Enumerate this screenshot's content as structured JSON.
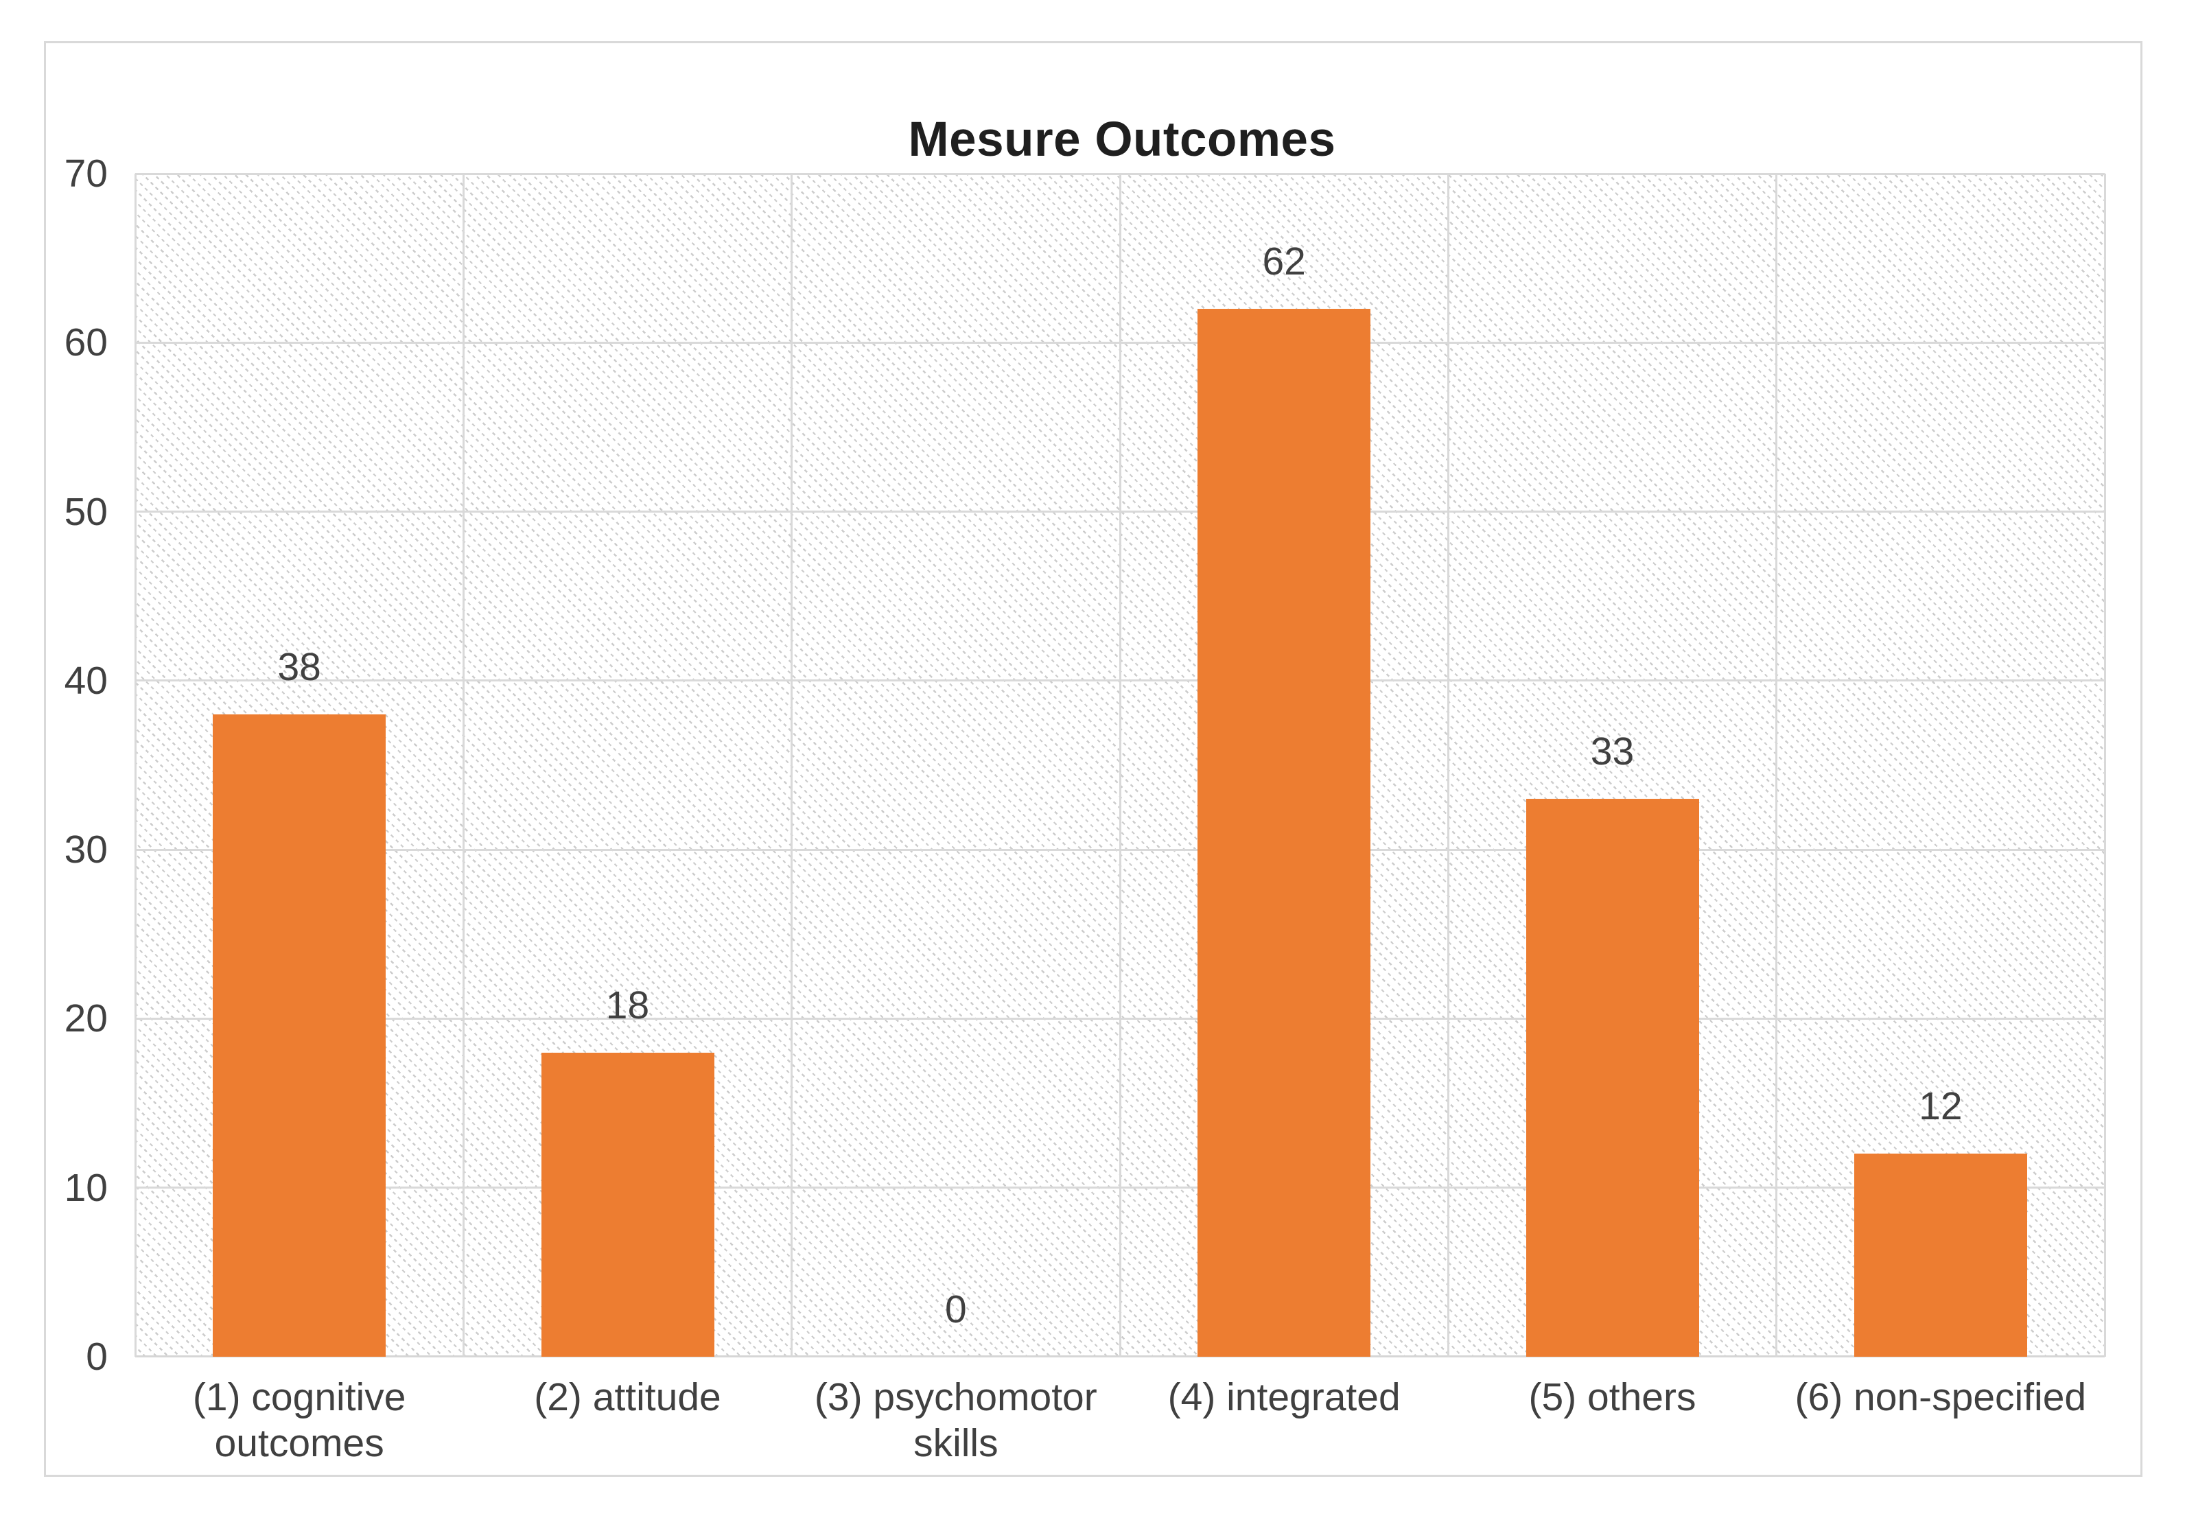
{
  "chart_data": {
    "type": "bar",
    "title": "Mesure Outcomes",
    "categories": [
      "(1) cognitive outcomes",
      "(2) attitude",
      "(3) psychomotor skills",
      "(4) integrated",
      "(5) others",
      "(6) non-specified"
    ],
    "values": [
      38,
      18,
      0,
      62,
      33,
      12
    ],
    "data_labels": [
      "38",
      "18",
      "0",
      "62",
      "33",
      "12"
    ],
    "data_labels_shown": true,
    "xlabel": "",
    "ylabel": "",
    "ylim": [
      0,
      70
    ],
    "yticks": [
      0,
      10,
      20,
      30,
      40,
      50,
      60,
      70
    ],
    "legend": "none",
    "grid": "horizontal and vertical major gridlines",
    "plot_background": "light diagonal dotted hatch pattern",
    "colors": {
      "bar_fill": "#ED7D31",
      "gridline": "#D9D9D9",
      "chart_border": "#D9D9D9",
      "hatch_line": "#CCCCCC",
      "label_text": "#404040",
      "title_text": "#1F1F1F",
      "background": "#FFFFFF"
    }
  }
}
